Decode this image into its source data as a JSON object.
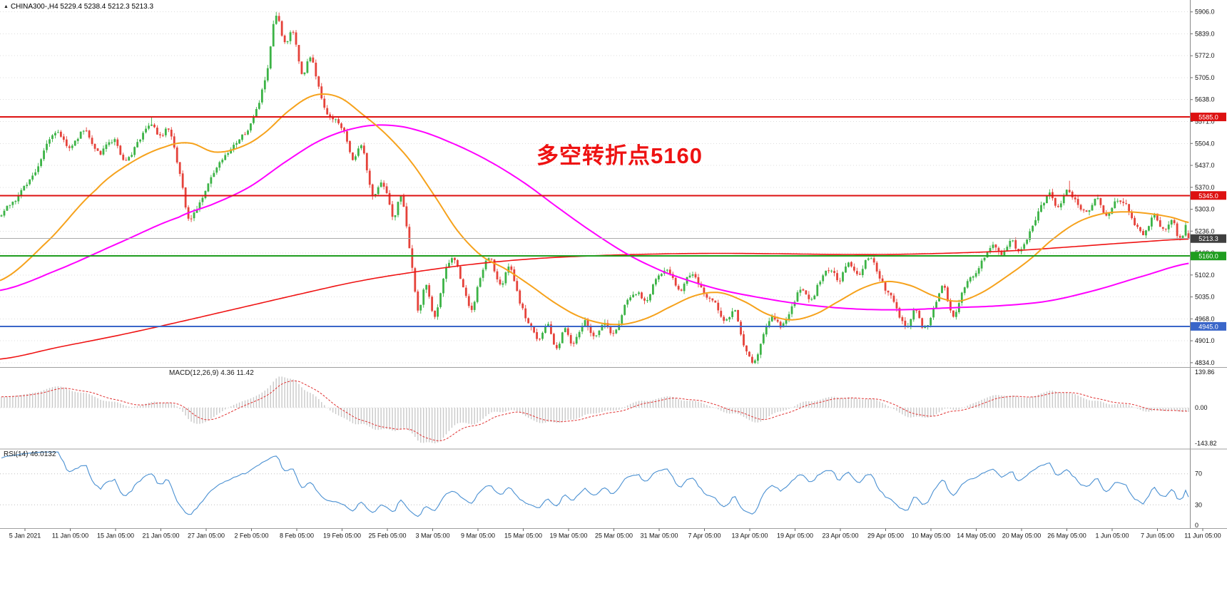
{
  "header": {
    "symbol": "CHINA300-",
    "timeframe": "H4",
    "open": "5229.4",
    "high": "5238.4",
    "low": "5212.3",
    "close": "5213.3",
    "symbol_line": "CHINA300-,H4 5229.4 5238.4 5212.3 5213.3",
    "marker": "▲"
  },
  "indicators": {
    "macd": {
      "label": "MACD(12,26,9) 4.36 11.42",
      "axis_labels": [
        "139.86",
        "0.00",
        "-143.82"
      ]
    },
    "rsi": {
      "label": "RSI(14) 46.0132",
      "axis_labels": [
        "70",
        "30",
        "0"
      ],
      "levels": [
        70,
        30
      ]
    }
  },
  "colors": {
    "up": "#3cb346",
    "down": "#e5423a",
    "ma_fast": "#f6a21c",
    "ma_mid": "#ff00ff",
    "ma_slow": "#ef1313",
    "macd_hist": "#c9c9c9",
    "macd_signal": "#e03131",
    "rsi_line": "#4a90d2",
    "grid": "#dcdcdc",
    "axis_text": "#111111",
    "separator": "#9f9f9f",
    "level_line": "#c0c0c0",
    "annotation": "#ee1212",
    "badge_text": "#ffffff"
  },
  "chart_data": {
    "type": "candlestick",
    "symbol": "CHINA300-",
    "timeframe": "H4",
    "y_range": [
      4825,
      5938
    ],
    "y_tick_labels": [
      "5906.0",
      "5839.0",
      "5772.0",
      "5705.0",
      "5638.0",
      "5571.0",
      "5504.0",
      "5437.0",
      "5370.0",
      "5303.0",
      "5236.0",
      "5169.0",
      "5102.0",
      "5035.0",
      "4968.0",
      "4901.0",
      "4834.0"
    ],
    "x_tick_labels": [
      "5 Jan 2021",
      "11 Jan 05:00",
      "15 Jan 05:00",
      "21 Jan 05:00",
      "27 Jan 05:00",
      "2 Feb 05:00",
      "8 Feb 05:00",
      "19 Feb 05:00",
      "25 Feb 05:00",
      "3 Mar 05:00",
      "9 Mar 05:00",
      "15 Mar 05:00",
      "19 Mar 05:00",
      "25 Mar 05:00",
      "31 Mar 05:00",
      "7 Apr 05:00",
      "13 Apr 05:00",
      "19 Apr 05:00",
      "23 Apr 05:00",
      "29 Apr 05:00",
      "10 May 05:00",
      "14 May 05:00",
      "20 May 05:00",
      "26 May 05:00",
      "1 Jun 05:00",
      "7 Jun 05:00",
      "11 Jun 05:00"
    ],
    "annotations": [
      {
        "text": "多空转折点5160"
      }
    ],
    "hlines": [
      {
        "price": 5585.0,
        "label": "5585.0",
        "color": "#dd1111",
        "width": 2,
        "role": "resistance"
      },
      {
        "price": 5345.0,
        "label": "5345.0",
        "color": "#dd1111",
        "width": 2,
        "role": "resistance"
      },
      {
        "price": 5213.3,
        "label": "5213.3",
        "color": "#ababab",
        "badge_color": "#3f3f3f",
        "width": 1,
        "role": "current-price"
      },
      {
        "price": 5160.0,
        "label": "5160.0",
        "color": "#1f9d1f",
        "width": 2,
        "role": "pivot"
      },
      {
        "price": 4945.0,
        "label": "4945.0",
        "color": "#3a66c9",
        "width": 2,
        "role": "support"
      }
    ],
    "visible_bars": 420,
    "warmup_bars": 60,
    "noise": {
      "seed": 42,
      "walk": 0.7,
      "amp": 20,
      "wick": 11
    },
    "last_candle": [
      5229.4,
      5238.4,
      5212.3,
      5213.3
    ],
    "anchors": [
      {
        "t": 0.125,
        "high": 5585
      },
      {
        "t": 0.2305,
        "high": 5906
      },
      {
        "t": 0.635,
        "low": 4834
      },
      {
        "t": 0.898,
        "high": 5390
      }
    ],
    "price_keyframes": [
      [
        -0.15,
        4980
      ],
      [
        -0.1,
        5065
      ],
      [
        -0.05,
        5165
      ],
      [
        0.0,
        5285
      ],
      [
        0.015,
        5355
      ],
      [
        0.03,
        5435
      ],
      [
        0.045,
        5540
      ],
      [
        0.058,
        5495
      ],
      [
        0.07,
        5545
      ],
      [
        0.082,
        5480
      ],
      [
        0.095,
        5515
      ],
      [
        0.105,
        5445
      ],
      [
        0.115,
        5505
      ],
      [
        0.125,
        5572
      ],
      [
        0.133,
        5520
      ],
      [
        0.141,
        5555
      ],
      [
        0.15,
        5425
      ],
      [
        0.158,
        5278
      ],
      [
        0.168,
        5335
      ],
      [
        0.18,
        5420
      ],
      [
        0.192,
        5465
      ],
      [
        0.204,
        5520
      ],
      [
        0.214,
        5600
      ],
      [
        0.224,
        5732
      ],
      [
        0.2305,
        5878
      ],
      [
        0.238,
        5795
      ],
      [
        0.245,
        5832
      ],
      [
        0.253,
        5712
      ],
      [
        0.26,
        5765
      ],
      [
        0.27,
        5625
      ],
      [
        0.278,
        5582
      ],
      [
        0.287,
        5545
      ],
      [
        0.295,
        5462
      ],
      [
        0.303,
        5505
      ],
      [
        0.312,
        5355
      ],
      [
        0.32,
        5405
      ],
      [
        0.329,
        5288
      ],
      [
        0.336,
        5345
      ],
      [
        0.343,
        5192
      ],
      [
        0.35,
        4998
      ],
      [
        0.357,
        5075
      ],
      [
        0.364,
        4978
      ],
      [
        0.372,
        5095
      ],
      [
        0.38,
        5155
      ],
      [
        0.388,
        5062
      ],
      [
        0.395,
        4995
      ],
      [
        0.403,
        5095
      ],
      [
        0.411,
        5148
      ],
      [
        0.419,
        5062
      ],
      [
        0.427,
        5118
      ],
      [
        0.435,
        5022
      ],
      [
        0.443,
        4955
      ],
      [
        0.451,
        4905
      ],
      [
        0.459,
        4952
      ],
      [
        0.466,
        4878
      ],
      [
        0.473,
        4932
      ],
      [
        0.481,
        4892
      ],
      [
        0.49,
        4958
      ],
      [
        0.498,
        4905
      ],
      [
        0.507,
        4968
      ],
      [
        0.515,
        4925
      ],
      [
        0.524,
        5002
      ],
      [
        0.533,
        5058
      ],
      [
        0.542,
        5022
      ],
      [
        0.551,
        5088
      ],
      [
        0.56,
        5122
      ],
      [
        0.57,
        5062
      ],
      [
        0.58,
        5108
      ],
      [
        0.59,
        5052
      ],
      [
        0.6,
        5002
      ],
      [
        0.608,
        4952
      ],
      [
        0.616,
        4992
      ],
      [
        0.624,
        4902
      ],
      [
        0.632,
        4848
      ],
      [
        0.64,
        4925
      ],
      [
        0.648,
        4985
      ],
      [
        0.656,
        4942
      ],
      [
        0.664,
        5012
      ],
      [
        0.672,
        5058
      ],
      [
        0.68,
        5022
      ],
      [
        0.688,
        5082
      ],
      [
        0.696,
        5122
      ],
      [
        0.704,
        5092
      ],
      [
        0.712,
        5148
      ],
      [
        0.72,
        5102
      ],
      [
        0.728,
        5168
      ],
      [
        0.736,
        5122
      ],
      [
        0.744,
        5062
      ],
      [
        0.752,
        5005
      ],
      [
        0.76,
        4952
      ],
      [
        0.768,
        4992
      ],
      [
        0.776,
        4942
      ],
      [
        0.784,
        5012
      ],
      [
        0.792,
        5062
      ],
      [
        0.8,
        4968
      ],
      [
        0.808,
        5042
      ],
      [
        0.816,
        5092
      ],
      [
        0.824,
        5148
      ],
      [
        0.832,
        5192
      ],
      [
        0.84,
        5152
      ],
      [
        0.848,
        5202
      ],
      [
        0.856,
        5162
      ],
      [
        0.864,
        5225
      ],
      [
        0.872,
        5295
      ],
      [
        0.88,
        5342
      ],
      [
        0.888,
        5310
      ],
      [
        0.896,
        5362
      ],
      [
        0.904,
        5330
      ],
      [
        0.912,
        5302
      ],
      [
        0.92,
        5340
      ],
      [
        0.928,
        5292
      ],
      [
        0.936,
        5330
      ],
      [
        0.944,
        5318
      ],
      [
        0.952,
        5262
      ],
      [
        0.96,
        5232
      ],
      [
        0.968,
        5282
      ],
      [
        0.976,
        5242
      ],
      [
        0.984,
        5268
      ],
      [
        0.99,
        5205
      ],
      [
        0.996,
        5252
      ],
      [
        1.0,
        5218
      ]
    ],
    "ma_lines": [
      {
        "name": "ma-slow-red",
        "color": "#ef1313",
        "width": 1.6,
        "points": [
          [
            0,
            4845
          ],
          [
            0.05,
            4882
          ],
          [
            0.1,
            4918
          ],
          [
            0.15,
            4958
          ],
          [
            0.2,
            5000
          ],
          [
            0.25,
            5042
          ],
          [
            0.3,
            5082
          ],
          [
            0.35,
            5112
          ],
          [
            0.4,
            5136
          ],
          [
            0.45,
            5152
          ],
          [
            0.5,
            5161
          ],
          [
            0.55,
            5166
          ],
          [
            0.6,
            5168
          ],
          [
            0.65,
            5167
          ],
          [
            0.7,
            5165
          ],
          [
            0.75,
            5165
          ],
          [
            0.8,
            5169
          ],
          [
            0.85,
            5176
          ],
          [
            0.9,
            5188
          ],
          [
            0.95,
            5201
          ],
          [
            1.0,
            5212
          ]
        ]
      },
      {
        "name": "ma-mid-magenta",
        "color": "#ff00ff",
        "width": 2,
        "points": [
          [
            0,
            5055
          ],
          [
            0.05,
            5120
          ],
          [
            0.1,
            5200
          ],
          [
            0.15,
            5278
          ],
          [
            0.18,
            5320
          ],
          [
            0.21,
            5372
          ],
          [
            0.24,
            5448
          ],
          [
            0.27,
            5515
          ],
          [
            0.3,
            5552
          ],
          [
            0.325,
            5560
          ],
          [
            0.35,
            5545
          ],
          [
            0.38,
            5505
          ],
          [
            0.41,
            5452
          ],
          [
            0.44,
            5385
          ],
          [
            0.47,
            5305
          ],
          [
            0.5,
            5228
          ],
          [
            0.53,
            5160
          ],
          [
            0.56,
            5108
          ],
          [
            0.6,
            5062
          ],
          [
            0.64,
            5032
          ],
          [
            0.68,
            5010
          ],
          [
            0.72,
            4998
          ],
          [
            0.76,
            4996
          ],
          [
            0.8,
            5002
          ],
          [
            0.84,
            5008
          ],
          [
            0.88,
            5022
          ],
          [
            0.92,
            5055
          ],
          [
            0.96,
            5098
          ],
          [
            1.0,
            5138
          ]
        ]
      },
      {
        "name": "ma-fast-orange",
        "color": "#f6a21c",
        "width": 2,
        "points": [
          [
            0,
            5085
          ],
          [
            0.04,
            5205
          ],
          [
            0.08,
            5360
          ],
          [
            0.11,
            5445
          ],
          [
            0.14,
            5495
          ],
          [
            0.16,
            5505
          ],
          [
            0.18,
            5478
          ],
          [
            0.2,
            5490
          ],
          [
            0.22,
            5530
          ],
          [
            0.245,
            5610
          ],
          [
            0.265,
            5652
          ],
          [
            0.285,
            5645
          ],
          [
            0.305,
            5592
          ],
          [
            0.325,
            5530
          ],
          [
            0.345,
            5450
          ],
          [
            0.365,
            5345
          ],
          [
            0.385,
            5235
          ],
          [
            0.405,
            5160
          ],
          [
            0.425,
            5120
          ],
          [
            0.445,
            5072
          ],
          [
            0.465,
            5020
          ],
          [
            0.485,
            4978
          ],
          [
            0.505,
            4955
          ],
          [
            0.525,
            4952
          ],
          [
            0.545,
            4972
          ],
          [
            0.565,
            5008
          ],
          [
            0.585,
            5040
          ],
          [
            0.605,
            5048
          ],
          [
            0.625,
            5022
          ],
          [
            0.645,
            4982
          ],
          [
            0.665,
            4965
          ],
          [
            0.685,
            4982
          ],
          [
            0.705,
            5022
          ],
          [
            0.725,
            5062
          ],
          [
            0.745,
            5082
          ],
          [
            0.765,
            5070
          ],
          [
            0.785,
            5038
          ],
          [
            0.805,
            5022
          ],
          [
            0.825,
            5048
          ],
          [
            0.845,
            5095
          ],
          [
            0.865,
            5148
          ],
          [
            0.885,
            5212
          ],
          [
            0.905,
            5262
          ],
          [
            0.925,
            5288
          ],
          [
            0.945,
            5295
          ],
          [
            0.965,
            5290
          ],
          [
            0.985,
            5278
          ],
          [
            1.0,
            5262
          ]
        ]
      }
    ],
    "macd_params": {
      "fast": 12,
      "slow": 26,
      "signal": 9,
      "peak_scale": 140
    },
    "rsi_params": {
      "period": 14
    }
  }
}
